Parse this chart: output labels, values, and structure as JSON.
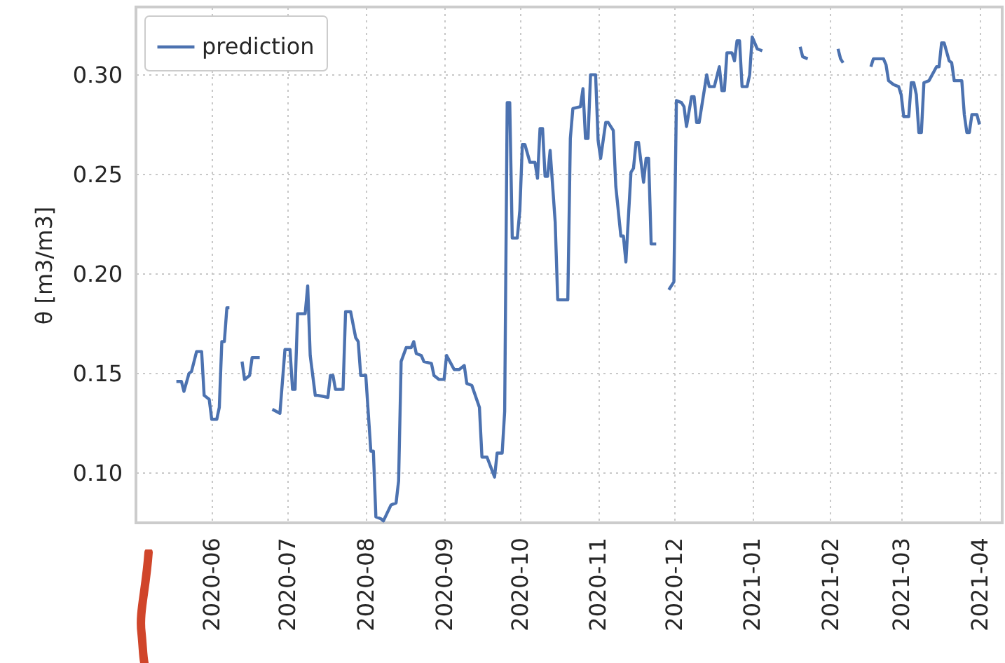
{
  "chart_data": {
    "type": "line",
    "ylabel": "θ [m3/m3]",
    "xlim": [
      "2020-05-02",
      "2021-04-10"
    ],
    "ylim": [
      0.075,
      0.334
    ],
    "xticks": [
      "2020-06",
      "2020-07",
      "2020-08",
      "2020-09",
      "2020-10",
      "2020-11",
      "2020-12",
      "2021-01",
      "2021-02",
      "2021-03",
      "2021-04"
    ],
    "yticks": [
      {
        "value": 0.1,
        "label": "0.10"
      },
      {
        "value": 0.15,
        "label": "0.15"
      },
      {
        "value": 0.2,
        "label": "0.20"
      },
      {
        "value": 0.25,
        "label": "0.25"
      },
      {
        "value": 0.3,
        "label": "0.30"
      }
    ],
    "grid": true,
    "legend": "top left",
    "line_style": "dotted",
    "x": [
      "2020-05-18",
      "2020-05-20",
      "2020-05-21",
      "2020-05-23",
      "2020-05-24",
      "2020-05-26",
      "2020-05-28",
      "2020-05-29",
      "2020-05-31",
      "2020-06-01",
      "2020-06-03",
      "2020-06-04",
      "2020-06-05",
      "2020-06-06",
      "2020-06-07",
      "2020-06-08",
      "2020-06-10",
      "2020-06-13",
      "2020-06-14",
      "2020-06-16",
      "2020-06-17",
      "2020-06-20",
      "2020-06-22",
      "2020-06-25",
      "2020-06-28",
      "2020-06-30",
      "2020-07-02",
      "2020-07-03",
      "2020-07-04",
      "2020-07-05",
      "2020-07-08",
      "2020-07-09",
      "2020-07-10",
      "2020-07-12",
      "2020-07-13",
      "2020-07-17",
      "2020-07-18",
      "2020-07-19",
      "2020-07-20",
      "2020-07-23",
      "2020-07-24",
      "2020-07-26",
      "2020-07-28",
      "2020-07-29",
      "2020-07-30",
      "2020-08-01",
      "2020-08-03",
      "2020-08-04",
      "2020-08-05",
      "2020-08-07",
      "2020-08-08",
      "2020-08-11",
      "2020-08-13",
      "2020-08-14",
      "2020-08-15",
      "2020-08-17",
      "2020-08-19",
      "2020-08-20",
      "2020-08-21",
      "2020-08-23",
      "2020-08-24",
      "2020-08-27",
      "2020-08-28",
      "2020-08-30",
      "2020-09-01",
      "2020-09-02",
      "2020-09-05",
      "2020-09-07",
      "2020-09-09",
      "2020-09-10",
      "2020-09-12",
      "2020-09-15",
      "2020-09-16",
      "2020-09-18",
      "2020-09-21",
      "2020-09-22",
      "2020-09-24",
      "2020-09-25",
      "2020-09-26",
      "2020-09-27",
      "2020-09-28",
      "2020-09-30",
      "2020-10-01",
      "2020-10-02",
      "2020-10-03",
      "2020-10-05",
      "2020-10-07",
      "2020-10-08",
      "2020-10-09",
      "2020-10-10",
      "2020-10-11",
      "2020-10-12",
      "2020-10-13",
      "2020-10-15",
      "2020-10-16",
      "2020-10-20",
      "2020-10-21",
      "2020-10-22",
      "2020-10-25",
      "2020-10-26",
      "2020-10-27",
      "2020-10-28",
      "2020-10-29",
      "2020-10-31",
      "2020-11-01",
      "2020-11-02",
      "2020-11-04",
      "2020-11-05",
      "2020-11-07",
      "2020-11-08",
      "2020-11-10",
      "2020-11-11",
      "2020-11-12",
      "2020-11-14",
      "2020-11-15",
      "2020-11-16",
      "2020-11-17",
      "2020-11-19",
      "2020-11-20",
      "2020-11-21",
      "2020-11-22",
      "2020-11-24",
      "2020-11-26",
      "2020-11-29",
      "2020-12-01",
      "2020-12-02",
      "2020-12-04",
      "2020-12-05",
      "2020-12-06",
      "2020-12-08",
      "2020-12-09",
      "2020-12-10",
      "2020-12-11",
      "2020-12-14",
      "2020-12-15",
      "2020-12-17",
      "2020-12-19",
      "2020-12-20",
      "2020-12-21",
      "2020-12-22",
      "2020-12-24",
      "2020-12-25",
      "2020-12-26",
      "2020-12-27",
      "2020-12-28",
      "2020-12-30",
      "2020-12-31",
      "2021-01-01",
      "2021-01-03",
      "2021-01-05",
      "2021-01-12",
      "2021-01-20",
      "2021-01-21",
      "2021-01-23",
      "2021-01-28",
      "2021-02-04",
      "2021-02-05",
      "2021-02-06",
      "2021-02-10",
      "2021-02-17",
      "2021-02-18",
      "2021-02-22",
      "2021-02-23",
      "2021-02-24",
      "2021-02-26",
      "2021-02-28",
      "2021-03-01",
      "2021-03-02",
      "2021-03-04",
      "2021-03-05",
      "2021-03-06",
      "2021-03-07",
      "2021-03-08",
      "2021-03-09",
      "2021-03-10",
      "2021-03-12",
      "2021-03-15",
      "2021-03-16",
      "2021-03-17",
      "2021-03-18",
      "2021-03-20",
      "2021-03-21",
      "2021-03-22",
      "2021-03-25",
      "2021-03-26",
      "2021-03-27",
      "2021-03-28",
      "2021-03-29",
      "2021-03-31",
      "2021-04-01"
    ],
    "series": [
      {
        "name": "prediction",
        "color": "#4c72b0",
        "line_style": "solid",
        "values": [
          0.146,
          0.146,
          0.141,
          0.15,
          0.151,
          0.161,
          0.161,
          0.139,
          0.137,
          0.127,
          0.127,
          0.133,
          0.166,
          0.166,
          0.183,
          0.183,
          null,
          0.156,
          0.147,
          0.149,
          0.158,
          0.158,
          null,
          0.132,
          0.13,
          0.162,
          0.162,
          0.142,
          0.142,
          0.18,
          0.18,
          0.194,
          0.159,
          0.139,
          0.139,
          0.138,
          0.149,
          0.149,
          0.142,
          0.142,
          0.181,
          0.181,
          0.168,
          0.166,
          0.149,
          0.149,
          0.111,
          0.111,
          0.078,
          0.077,
          0.076,
          0.084,
          0.085,
          0.096,
          0.156,
          0.163,
          0.163,
          0.166,
          0.16,
          0.159,
          0.156,
          0.155,
          0.149,
          0.147,
          0.147,
          0.159,
          0.152,
          0.152,
          0.154,
          0.145,
          0.144,
          0.133,
          0.108,
          0.108,
          0.098,
          0.11,
          0.11,
          0.131,
          0.286,
          0.286,
          0.218,
          0.218,
          0.232,
          0.265,
          0.265,
          0.256,
          0.256,
          0.248,
          0.273,
          0.273,
          0.249,
          0.249,
          0.262,
          0.226,
          0.187,
          0.187,
          0.268,
          0.283,
          0.284,
          0.293,
          0.268,
          0.268,
          0.3,
          0.3,
          0.267,
          0.258,
          0.276,
          0.276,
          0.272,
          0.244,
          0.219,
          0.219,
          0.206,
          0.251,
          0.253,
          0.266,
          0.266,
          0.246,
          0.258,
          0.258,
          0.215,
          0.215,
          null,
          0.192,
          0.196,
          0.287,
          0.286,
          0.284,
          0.274,
          0.289,
          0.289,
          0.276,
          0.276,
          0.3,
          0.294,
          0.294,
          0.304,
          0.292,
          0.292,
          0.311,
          0.311,
          0.307,
          0.317,
          0.317,
          0.294,
          0.294,
          0.3,
          0.319,
          0.313,
          0.312,
          null,
          0.314,
          0.309,
          0.308,
          null,
          0.313,
          0.308,
          0.306,
          null,
          0.304,
          0.308,
          0.308,
          0.305,
          0.297,
          0.295,
          0.294,
          0.29,
          0.279,
          0.279,
          0.296,
          0.296,
          0.29,
          0.271,
          0.271,
          0.296,
          0.297,
          0.304,
          0.304,
          0.316,
          0.316,
          0.307,
          0.306,
          0.297,
          0.297,
          0.28,
          0.271,
          0.271,
          0.28,
          0.28,
          0.275
        ]
      }
    ]
  }
}
